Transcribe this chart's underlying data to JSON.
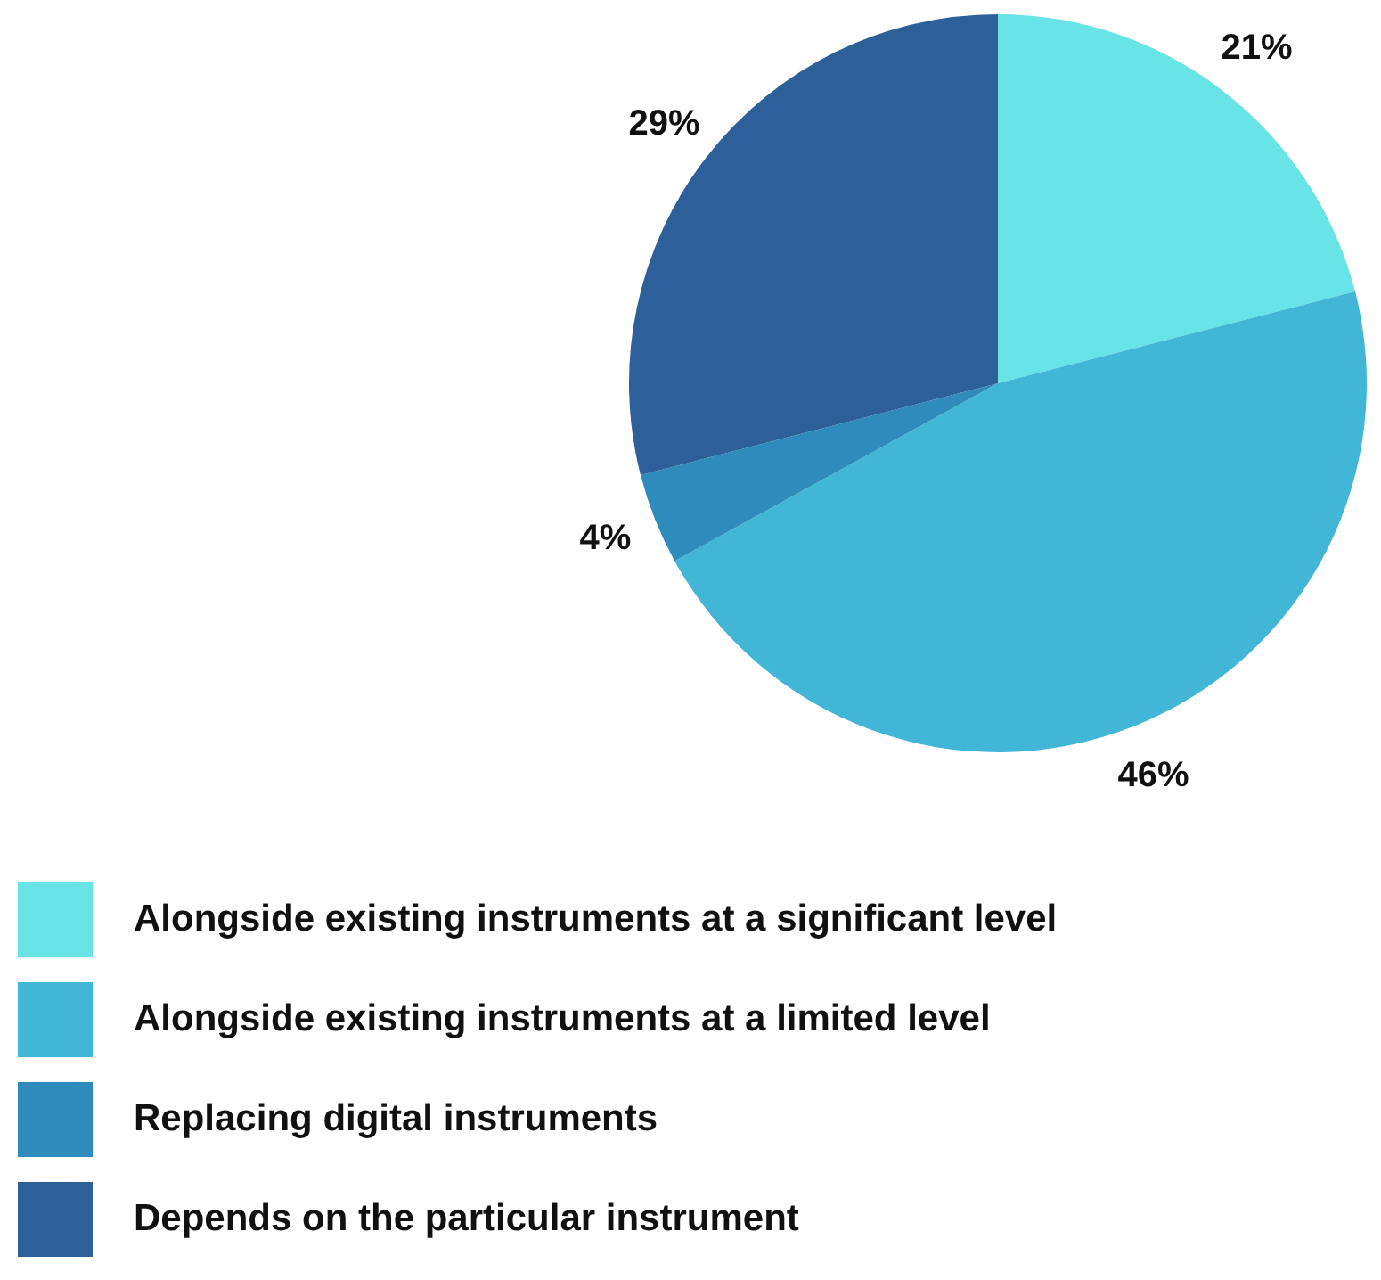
{
  "chart_data": {
    "type": "pie",
    "categories": [
      "Alongside existing instruments at a significant level",
      "Alongside existing instruments at a limited level",
      "Replacing digital instruments",
      "Depends on the particular instrument"
    ],
    "values": [
      21,
      46,
      4,
      29
    ],
    "colors": [
      "#68e3e6",
      "#41b6d6",
      "#2e8bbb",
      "#2d5f98"
    ],
    "value_labels": [
      "21%",
      "46%",
      "4%",
      "29%"
    ],
    "legend": "bottom"
  }
}
